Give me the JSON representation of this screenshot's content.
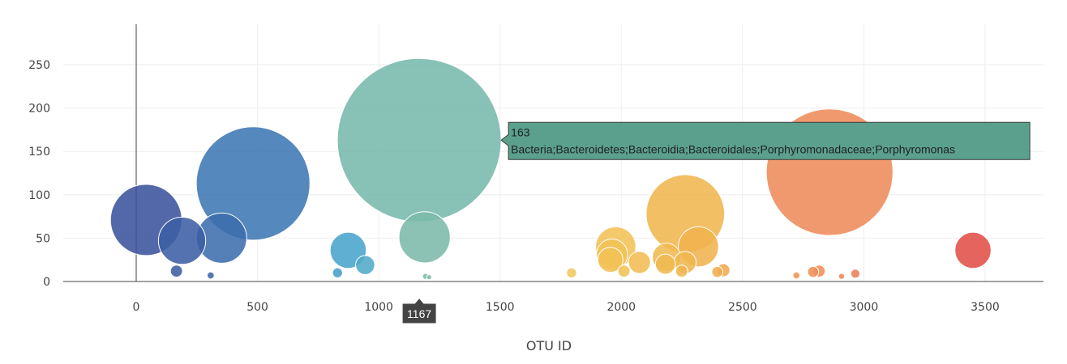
{
  "chart_data": {
    "type": "scatter",
    "subtype": "bubble",
    "title": "",
    "xlabel": "OTU ID",
    "ylabel": "",
    "xlim": [
      -450,
      3720
    ],
    "ylim": [
      -10,
      297
    ],
    "x_ticks": [
      0,
      500,
      1000,
      1500,
      2000,
      2500,
      3000,
      3500
    ],
    "x_tick_labels": [
      "0",
      "500",
      "1000",
      "1500",
      "2000",
      "2500",
      "3000",
      "3500"
    ],
    "y_ticks": [
      0,
      50,
      100,
      150,
      200,
      250
    ],
    "y_tick_labels": [
      "0",
      "50",
      "100",
      "150",
      "200",
      "250"
    ],
    "grid": true,
    "legend": "none",
    "colorscale": [
      "#3b4f9a",
      "#3d7ab5",
      "#4aa7cf",
      "#7dbaa7",
      "#f2c95a",
      "#f0b44e",
      "#ef8c5a",
      "#e04a45"
    ],
    "points": [
      {
        "x": 41,
        "y": 71,
        "value": 71
      },
      {
        "x": 189,
        "y": 47,
        "value": 47
      },
      {
        "x": 352,
        "y": 50,
        "value": 50
      },
      {
        "x": 482,
        "y": 113,
        "value": 113
      },
      {
        "x": 874,
        "y": 36,
        "value": 36
      },
      {
        "x": 944,
        "y": 19,
        "value": 19
      },
      {
        "x": 166,
        "y": 12,
        "value": 12
      },
      {
        "x": 307,
        "y": 7,
        "value": 7
      },
      {
        "x": 830,
        "y": 10,
        "value": 10
      },
      {
        "x": 1167,
        "y": 163,
        "value": 163
      },
      {
        "x": 1189,
        "y": 51,
        "value": 51
      },
      {
        "x": 1193,
        "y": 6,
        "value": 6
      },
      {
        "x": 1208,
        "y": 5,
        "value": 5
      },
      {
        "x": 1795,
        "y": 10,
        "value": 10
      },
      {
        "x": 1977,
        "y": 40,
        "value": 40
      },
      {
        "x": 1962,
        "y": 31,
        "value": 31
      },
      {
        "x": 1955,
        "y": 25,
        "value": 25
      },
      {
        "x": 2011,
        "y": 12,
        "value": 12
      },
      {
        "x": 2075,
        "y": 22,
        "value": 22
      },
      {
        "x": 2264,
        "y": 78,
        "value": 78
      },
      {
        "x": 2318,
        "y": 40,
        "value": 40
      },
      {
        "x": 2186,
        "y": 28,
        "value": 28
      },
      {
        "x": 2182,
        "y": 20,
        "value": 20
      },
      {
        "x": 2249,
        "y": 12,
        "value": 12
      },
      {
        "x": 2263,
        "y": 22,
        "value": 22
      },
      {
        "x": 2396,
        "y": 11,
        "value": 11
      },
      {
        "x": 2421,
        "y": 13,
        "value": 13
      },
      {
        "x": 2859,
        "y": 126,
        "value": 126
      },
      {
        "x": 2722,
        "y": 7,
        "value": 7
      },
      {
        "x": 2791,
        "y": 11,
        "value": 11
      },
      {
        "x": 2816,
        "y": 12,
        "value": 12
      },
      {
        "x": 2908,
        "y": 6,
        "value": 6
      },
      {
        "x": 2965,
        "y": 9,
        "value": 9
      },
      {
        "x": 3450,
        "y": 36,
        "value": 36
      }
    ],
    "hover": {
      "x": 1167,
      "y": 163,
      "value": "163",
      "label": "Bacteria;Bacteroidetes;Bacteroidia;Bacteroidales;Porphyromonadaceae;Porphyromonas",
      "x_value_label": "1167",
      "color": "#5aa08d"
    }
  }
}
